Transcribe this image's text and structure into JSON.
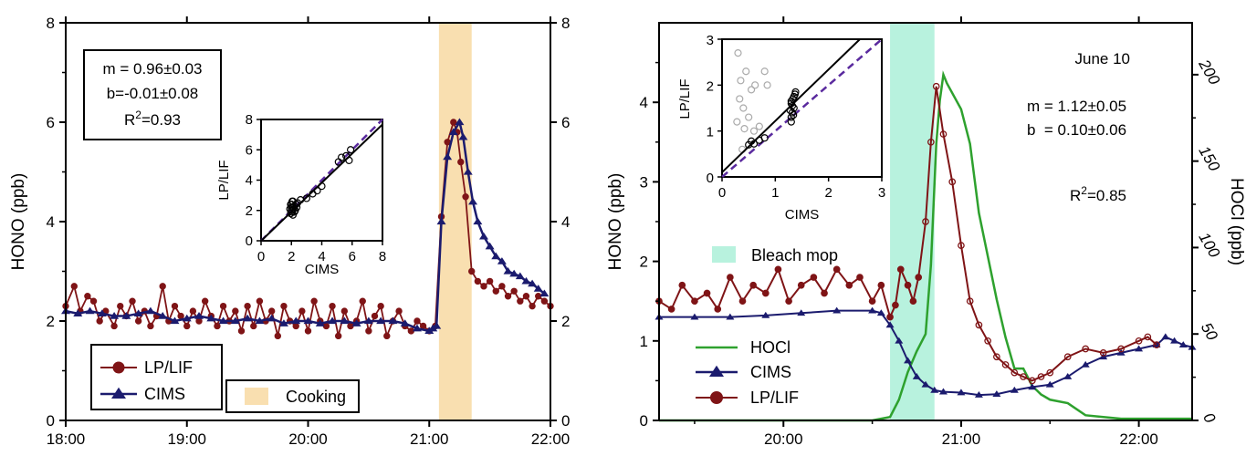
{
  "colors": {
    "lplif": "#7f1416",
    "cims": "#1b1b6e",
    "hocl": "#2ea12e",
    "cooking": "#f9dfb0",
    "bleach": "#b8f2de",
    "one_to_one": "#5a2a9e",
    "fit": "#000000",
    "gray_points": "#aaaaaa"
  },
  "chart_data": [
    {
      "type": "line",
      "ylabel": "HONO (ppb)",
      "x_ticks": [
        "18:00",
        "19:00",
        "20:00",
        "21:00",
        "22:00"
      ],
      "xlim_hours": [
        18,
        22
      ],
      "ylim": [
        0,
        8
      ],
      "y_ticks": [
        "0",
        "2",
        "4",
        "6",
        "8"
      ],
      "y_ticks_right": [
        "0",
        "2",
        "4",
        "6",
        "8"
      ],
      "shaded_region": {
        "label": "Cooking",
        "start_hour": 21.08,
        "end_hour": 21.35
      },
      "fit_box": {
        "line1": "m = 0.96±0.03",
        "line2": "b=-0.01±0.08",
        "line3_prefix": "R",
        "line3_sup": "2",
        "line3_suffix": "=0.93"
      },
      "legend": {
        "lplif": "LP/LIF",
        "cims": "CIMS",
        "cooking": "Cooking"
      },
      "series": [
        {
          "name": "LP/LIF",
          "key": "lplif",
          "x": [
            18.0,
            18.07,
            18.12,
            18.18,
            18.23,
            18.28,
            18.33,
            18.4,
            18.45,
            18.5,
            18.55,
            18.6,
            18.65,
            18.7,
            18.75,
            18.8,
            18.85,
            18.9,
            18.95,
            19.0,
            19.05,
            19.1,
            19.15,
            19.2,
            19.25,
            19.3,
            19.35,
            19.4,
            19.45,
            19.5,
            19.55,
            19.6,
            19.65,
            19.7,
            19.75,
            19.8,
            19.85,
            19.9,
            19.95,
            20.0,
            20.05,
            20.1,
            20.15,
            20.2,
            20.25,
            20.3,
            20.35,
            20.4,
            20.45,
            20.5,
            20.55,
            20.6,
            20.65,
            20.7,
            20.75,
            20.8,
            20.85,
            20.9,
            20.95,
            21.0,
            21.05,
            21.1,
            21.15,
            21.2,
            21.23,
            21.26,
            21.3,
            21.35,
            21.4,
            21.45,
            21.5,
            21.55,
            21.6,
            21.65,
            21.7,
            21.75,
            21.8,
            21.85,
            21.9,
            21.95,
            22.0
          ],
          "y": [
            2.3,
            2.7,
            2.2,
            2.5,
            2.4,
            2.0,
            2.2,
            1.9,
            2.3,
            2.1,
            2.4,
            2.0,
            2.2,
            1.9,
            2.1,
            2.7,
            2.0,
            2.3,
            2.1,
            1.9,
            2.2,
            2.0,
            2.4,
            2.1,
            1.9,
            2.3,
            2.0,
            2.2,
            1.8,
            2.3,
            1.9,
            2.4,
            2.0,
            2.2,
            1.7,
            2.3,
            2.0,
            1.9,
            2.2,
            1.8,
            2.4,
            2.0,
            1.9,
            2.3,
            1.7,
            2.2,
            1.9,
            2.0,
            2.4,
            1.8,
            2.1,
            2.3,
            1.7,
            2.0,
            2.2,
            1.9,
            1.8,
            2.0,
            1.9,
            1.8,
            1.9,
            4.1,
            5.6,
            6.0,
            5.8,
            5.2,
            4.5,
            3.0,
            2.8,
            2.7,
            2.8,
            2.6,
            2.7,
            2.5,
            2.6,
            2.4,
            2.5,
            2.3,
            2.5,
            2.4,
            2.3
          ]
        },
        {
          "name": "CIMS",
          "key": "cims",
          "x": [
            18.0,
            18.1,
            18.2,
            18.3,
            18.4,
            18.5,
            18.6,
            18.7,
            18.8,
            18.9,
            19.0,
            19.1,
            19.2,
            19.3,
            19.4,
            19.5,
            19.6,
            19.7,
            19.8,
            19.9,
            20.0,
            20.1,
            20.2,
            20.3,
            20.4,
            20.5,
            20.6,
            20.7,
            20.8,
            20.9,
            21.0,
            21.03,
            21.06,
            21.1,
            21.15,
            21.2,
            21.25,
            21.28,
            21.32,
            21.36,
            21.4,
            21.45,
            21.5,
            21.55,
            21.6,
            21.65,
            21.7,
            21.75,
            21.8,
            21.85,
            21.9,
            21.95
          ],
          "y": [
            2.2,
            2.15,
            2.2,
            2.15,
            2.1,
            2.1,
            2.15,
            2.2,
            2.1,
            2.0,
            2.05,
            2.1,
            2.05,
            2.0,
            2.0,
            2.05,
            2.0,
            2.05,
            1.95,
            2.0,
            2.0,
            1.95,
            2.0,
            2.0,
            1.95,
            2.0,
            2.0,
            2.0,
            1.95,
            1.85,
            1.8,
            1.85,
            1.9,
            4.0,
            5.3,
            5.8,
            6.0,
            5.7,
            5.0,
            4.4,
            4.0,
            3.7,
            3.5,
            3.3,
            3.2,
            3.0,
            2.95,
            2.9,
            2.8,
            2.75,
            2.65,
            2.55
          ]
        }
      ],
      "inset": {
        "xlabel": "CIMS",
        "ylabel": "LP/LIF",
        "x_ticks": [
          "0",
          "2",
          "4",
          "6",
          "8"
        ],
        "y_ticks": [
          "0",
          "2",
          "4",
          "6",
          "8"
        ],
        "lim": [
          0,
          8
        ],
        "fit": {
          "slope": 0.96,
          "intercept": -0.01
        },
        "points_x": [
          2.0,
          2.1,
          2.05,
          1.95,
          2.2,
          2.3,
          2.0,
          2.15,
          2.4,
          2.1,
          1.9,
          2.25,
          2.0,
          2.05,
          2.6,
          3.0,
          3.4,
          3.7,
          4.0,
          5.1,
          5.6,
          5.9,
          5.3,
          5.8,
          2.1,
          2.2,
          1.95,
          2.35
        ],
        "points_y": [
          2.2,
          2.6,
          1.9,
          1.8,
          2.3,
          2.4,
          2.0,
          2.1,
          2.5,
          1.7,
          2.1,
          2.0,
          2.4,
          2.6,
          2.7,
          2.8,
          3.1,
          3.3,
          3.6,
          5.2,
          5.6,
          6.0,
          5.5,
          5.3,
          2.2,
          1.9,
          2.4,
          2.2
        ]
      }
    },
    {
      "type": "line",
      "ylabel": "HONO (ppb)",
      "ylabel_right": "HOCl (ppb)",
      "x_ticks": [
        "20:00",
        "21:00",
        "22:00"
      ],
      "xlim_hours": [
        19.3,
        22.3
      ],
      "ylim": [
        0,
        5
      ],
      "y_ticks": [
        "0",
        "1",
        "2",
        "3",
        "4"
      ],
      "ylim_right": [
        0,
        230
      ],
      "y_ticks_right": [
        "0",
        "50",
        "100",
        "150",
        "200"
      ],
      "shaded_region": {
        "label": "Bleach mop",
        "start_hour": 20.6,
        "end_hour": 20.85
      },
      "date_label": "June 10",
      "fit_text": {
        "line1": "m = 1.12±0.05",
        "line2": "b  = 0.10±0.06",
        "line3_prefix": "R",
        "line3_sup": "2",
        "line3_suffix": "=0.85"
      },
      "legend": {
        "hocl": "HOCl",
        "cims": "CIMS",
        "lplif": "LP/LIF",
        "bleach": "Bleach mop"
      },
      "series": [
        {
          "name": "HOCl",
          "key": "hocl",
          "axis": "right",
          "x": [
            19.3,
            20.5,
            20.6,
            20.65,
            20.7,
            20.75,
            20.8,
            20.83,
            20.86,
            20.88,
            20.9,
            20.92,
            21.0,
            21.05,
            21.1,
            21.15,
            21.2,
            21.25,
            21.3,
            21.35,
            21.4,
            21.45,
            21.5,
            21.6,
            21.7,
            21.8,
            21.9,
            22.0,
            22.3
          ],
          "y": [
            0,
            0,
            2,
            12,
            28,
            40,
            50,
            90,
            160,
            185,
            200,
            195,
            180,
            160,
            120,
            95,
            70,
            48,
            30,
            30,
            20,
            15,
            12,
            10,
            3,
            2,
            1,
            1,
            1
          ]
        },
        {
          "name": "CIMS",
          "key": "cims",
          "axis": "left",
          "x": [
            19.3,
            19.5,
            19.7,
            19.9,
            20.1,
            20.3,
            20.5,
            20.55,
            20.6,
            20.65,
            20.7,
            20.75,
            20.8,
            20.85,
            20.9,
            21.0,
            21.1,
            21.2,
            21.3,
            21.4,
            21.5,
            21.6,
            21.7,
            21.8,
            21.9,
            22.0,
            22.1,
            22.15,
            22.2,
            22.25,
            22.3
          ],
          "y": [
            1.3,
            1.3,
            1.3,
            1.32,
            1.35,
            1.38,
            1.38,
            1.35,
            1.2,
            1.0,
            0.75,
            0.55,
            0.45,
            0.38,
            0.36,
            0.35,
            0.32,
            0.33,
            0.38,
            0.42,
            0.45,
            0.55,
            0.7,
            0.8,
            0.85,
            0.9,
            0.95,
            1.05,
            1.0,
            0.95,
            0.92
          ]
        },
        {
          "name": "LP/LIF",
          "key": "lplif",
          "axis": "left",
          "x": [
            19.3,
            19.37,
            19.43,
            19.5,
            19.57,
            19.63,
            19.7,
            19.77,
            19.83,
            19.9,
            19.97,
            20.03,
            20.1,
            20.17,
            20.23,
            20.3,
            20.37,
            20.43,
            20.5,
            20.55,
            20.6,
            20.63,
            20.66,
            20.7,
            20.73,
            20.76,
            20.8,
            20.83,
            20.86,
            20.9,
            20.95,
            21.0,
            21.05,
            21.1,
            21.15,
            21.2,
            21.25,
            21.3,
            21.35,
            21.4,
            21.45,
            21.5,
            21.6,
            21.7,
            21.8,
            21.9,
            22.0,
            22.05,
            22.1
          ],
          "y": [
            1.5,
            1.4,
            1.7,
            1.5,
            1.6,
            1.4,
            1.8,
            1.5,
            1.7,
            1.6,
            1.9,
            1.5,
            1.7,
            1.8,
            1.6,
            1.9,
            1.7,
            1.8,
            1.5,
            1.7,
            1.3,
            1.45,
            1.9,
            1.7,
            1.5,
            1.8,
            2.5,
            3.5,
            4.2,
            3.6,
            3.0,
            2.2,
            1.5,
            1.2,
            1.0,
            0.8,
            0.7,
            0.6,
            0.55,
            0.5,
            0.55,
            0.6,
            0.8,
            0.9,
            0.85,
            0.9,
            1.0,
            1.05,
            0.95
          ]
        }
      ],
      "inset": {
        "xlabel": "CIMS",
        "ylabel": "LP/LIF",
        "x_ticks": [
          "0",
          "1",
          "2",
          "3"
        ],
        "y_ticks": [
          "0",
          "1",
          "2",
          "3"
        ],
        "lim": [
          0,
          3
        ],
        "fit": {
          "slope": 1.12,
          "intercept": 0.1
        },
        "gray_x": [
          0.3,
          0.35,
          0.45,
          0.55,
          0.62,
          0.8,
          0.85,
          0.4,
          0.28,
          0.33,
          0.5,
          0.7,
          0.42,
          0.6,
          0.38
        ],
        "gray_y": [
          2.7,
          2.1,
          2.3,
          1.9,
          2.0,
          2.3,
          2.0,
          1.5,
          1.2,
          1.7,
          1.3,
          1.1,
          1.05,
          1.0,
          0.6
        ],
        "points_x": [
          0.5,
          0.55,
          0.6,
          0.7,
          0.8,
          1.3,
          1.32,
          1.35,
          1.3,
          1.33,
          1.37,
          1.3,
          1.35,
          1.28,
          1.32,
          1.38,
          1.3,
          1.34
        ],
        "points_y": [
          0.7,
          0.78,
          0.72,
          0.8,
          0.85,
          1.3,
          1.4,
          1.5,
          1.6,
          1.7,
          1.8,
          1.2,
          1.75,
          1.45,
          1.55,
          1.85,
          1.65,
          1.35
        ]
      }
    }
  ]
}
